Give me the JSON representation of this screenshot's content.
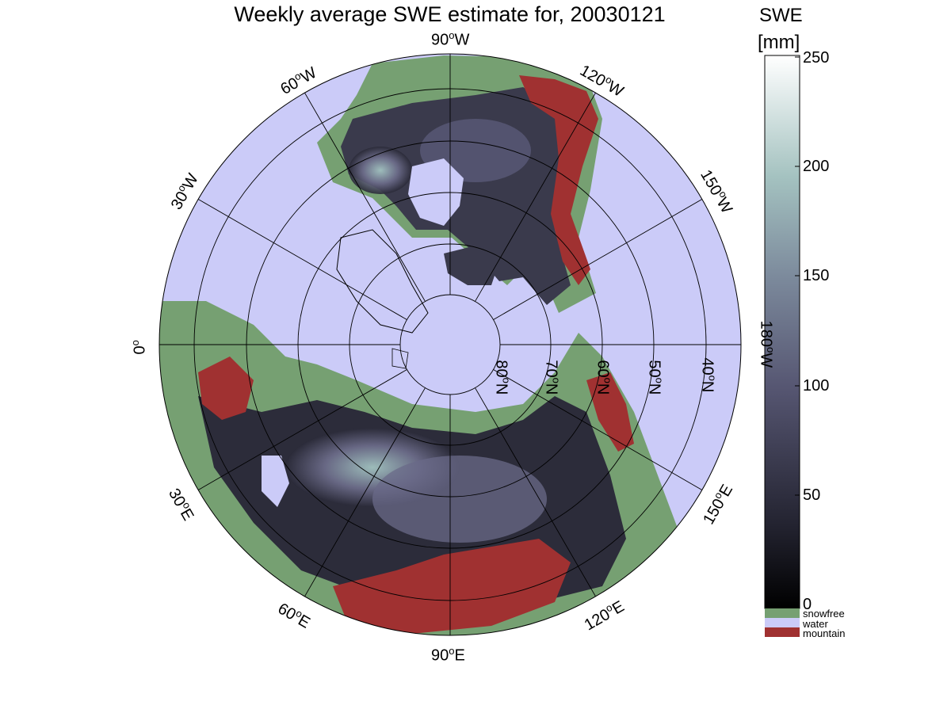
{
  "title": "Weekly average SWE estimate for, 20030121",
  "colorbar": {
    "title_line1": "SWE",
    "title_line2": "[mm]",
    "ticks": [
      "250",
      "200",
      "150",
      "100",
      "50",
      "0"
    ],
    "range": [
      0,
      250
    ]
  },
  "legend": [
    {
      "label": "snowfree",
      "color": "#76a072"
    },
    {
      "label": "water",
      "color": "#cbcbf8"
    },
    {
      "label": "mountain",
      "color": "#a03131"
    }
  ],
  "longitude_labels": {
    "w90": {
      "deg": "90",
      "hem": "W"
    },
    "w60": {
      "deg": "60",
      "hem": "W"
    },
    "w120": {
      "deg": "120",
      "hem": "W"
    },
    "w30": {
      "deg": "30",
      "hem": "W"
    },
    "w150": {
      "deg": "150",
      "hem": "W"
    },
    "zero": {
      "deg": "0",
      "hem": ""
    },
    "w180": {
      "deg": "180",
      "hem": "W"
    },
    "e30": {
      "deg": "30",
      "hem": "E"
    },
    "e150": {
      "deg": "150",
      "hem": "E"
    },
    "e60": {
      "deg": "60",
      "hem": "E"
    },
    "e120": {
      "deg": "120",
      "hem": "E"
    },
    "e90": {
      "deg": "90",
      "hem": "E"
    }
  },
  "latitude_labels": [
    {
      "deg": "80",
      "hem": "N"
    },
    {
      "deg": "70",
      "hem": "N"
    },
    {
      "deg": "60",
      "hem": "N"
    },
    {
      "deg": "50",
      "hem": "N"
    },
    {
      "deg": "40",
      "hem": "N"
    }
  ],
  "colors": {
    "water": "#cbcbf8",
    "snowfree": "#76a072",
    "mountain": "#a03131",
    "swe_low": "#0a0a0e",
    "swe_mid": "#5a5a78",
    "swe_high": "#a9ccc8"
  }
}
